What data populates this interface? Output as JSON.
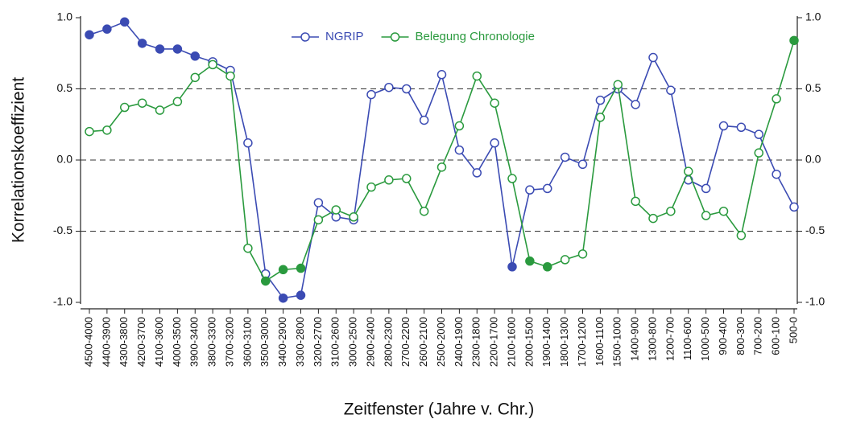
{
  "chart_data": {
    "type": "line",
    "ylabel": "Korrelationskoeffizient",
    "xlabel": "Zeitfenster (Jahre v. Chr.)",
    "categories": [
      "4500-4000",
      "4400-3900",
      "4300-3800",
      "4200-3700",
      "4100-3600",
      "4000-3500",
      "3900-3400",
      "3800-3300",
      "3700-3200",
      "3600-3100",
      "3500-3000",
      "3400-2900",
      "3300-2800",
      "3200-2700",
      "3100-2600",
      "3000-2500",
      "2900-2400",
      "2800-2300",
      "2700-2200",
      "2600-2100",
      "2500-2000",
      "2400-1900",
      "2300-1800",
      "2200-1700",
      "2100-1600",
      "2000-1500",
      "1900-1400",
      "1800-1300",
      "1700-1200",
      "1600-1100",
      "1500-1000",
      "1400-900",
      "1300-800",
      "1200-700",
      "1100-600",
      "1000-500",
      "900-400",
      "800-300",
      "700-200",
      "600-100",
      "500-0"
    ],
    "series": [
      {
        "name": "NGRIP",
        "color": "#3b4bb3",
        "values": [
          0.88,
          0.92,
          0.97,
          0.82,
          0.78,
          0.78,
          0.73,
          0.69,
          0.63,
          0.12,
          -0.8,
          -0.97,
          -0.95,
          -0.3,
          -0.4,
          -0.42,
          0.46,
          0.51,
          0.5,
          0.28,
          0.6,
          0.07,
          -0.09,
          0.12,
          -0.75,
          -0.21,
          -0.2,
          0.02,
          -0.03,
          0.42,
          0.5,
          0.39,
          0.72,
          0.49,
          -0.14,
          -0.2,
          0.24,
          0.23,
          0.18,
          -0.1,
          -0.33
        ],
        "filled": [
          true,
          true,
          true,
          true,
          true,
          true,
          true,
          false,
          false,
          false,
          false,
          true,
          true,
          false,
          false,
          false,
          false,
          false,
          false,
          false,
          false,
          false,
          false,
          false,
          true,
          false,
          false,
          false,
          false,
          false,
          false,
          false,
          false,
          false,
          false,
          false,
          false,
          false,
          false,
          false,
          false
        ]
      },
      {
        "name": "Belegung Chronologie",
        "color": "#2a9a3e",
        "values": [
          0.2,
          0.21,
          0.37,
          0.4,
          0.35,
          0.41,
          0.58,
          0.67,
          0.59,
          -0.62,
          -0.85,
          -0.77,
          -0.76,
          -0.42,
          -0.35,
          -0.4,
          -0.19,
          -0.14,
          -0.13,
          -0.36,
          -0.05,
          0.24,
          0.59,
          0.4,
          -0.13,
          -0.71,
          -0.75,
          -0.7,
          -0.66,
          0.3,
          0.53,
          -0.29,
          -0.41,
          -0.36,
          -0.08,
          -0.39,
          -0.36,
          -0.53,
          0.05,
          0.43,
          0.84
        ],
        "filled": [
          false,
          false,
          false,
          false,
          false,
          false,
          false,
          false,
          false,
          false,
          true,
          true,
          true,
          false,
          false,
          false,
          false,
          false,
          false,
          false,
          false,
          false,
          false,
          false,
          false,
          true,
          true,
          false,
          false,
          false,
          false,
          false,
          false,
          false,
          false,
          false,
          false,
          false,
          false,
          false,
          true
        ]
      }
    ],
    "ylim": [
      -1,
      1
    ],
    "yticks": [
      {
        "value": 1,
        "label": "1.0"
      },
      {
        "value": 0.5,
        "label": "0.5"
      },
      {
        "value": 0,
        "label": "0.0"
      },
      {
        "value": -0.5,
        "label": "-0.5"
      },
      {
        "value": -1,
        "label": "-1.0"
      }
    ],
    "y2lim": [
      -1,
      1
    ],
    "y2ticks": [
      {
        "value": 1,
        "label": "1.0"
      },
      {
        "value": 0.5,
        "label": "0.5"
      },
      {
        "value": 0,
        "label": "0.0"
      },
      {
        "value": -0.5,
        "label": "-0.5"
      },
      {
        "value": -1,
        "label": "-1.0"
      }
    ],
    "grid": true,
    "legend": "top"
  }
}
